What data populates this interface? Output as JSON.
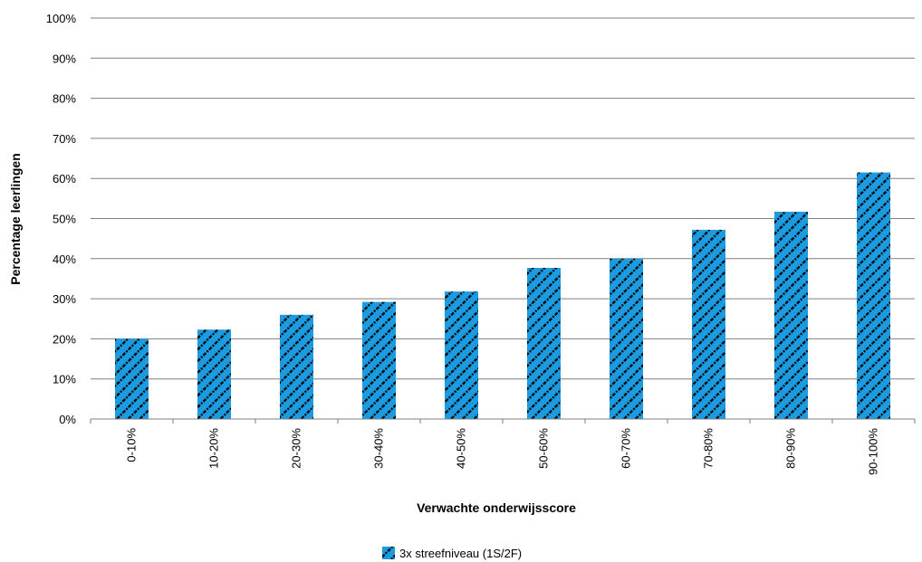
{
  "chart_data": {
    "type": "bar",
    "xlabel": "Verwachte onderwijsscore",
    "ylabel": "Percentage leerlingen",
    "categories": [
      "0-10%",
      "10-20%",
      "20-30%",
      "30-40%",
      "40-50%",
      "50-60%",
      "60-70%",
      "70-80%",
      "80-90%",
      "90-100%"
    ],
    "series": [
      {
        "name": "3x streefniveau (1S/2F)",
        "values": [
          20,
          22.3,
          26,
          29.2,
          31.8,
          37.7,
          40,
          47.2,
          51.7,
          61.5
        ],
        "color": "#1c9be0",
        "pattern": "diagonal-hatch-black"
      }
    ],
    "ylim": [
      0,
      100
    ],
    "yticks": [
      0,
      10,
      20,
      30,
      40,
      50,
      60,
      70,
      80,
      90,
      100
    ],
    "ytick_labels": [
      "0%",
      "10%",
      "20%",
      "30%",
      "40%",
      "50%",
      "60%",
      "70%",
      "80%",
      "90%",
      "100%"
    ],
    "grid": true,
    "legend_position": "bottom-center"
  }
}
